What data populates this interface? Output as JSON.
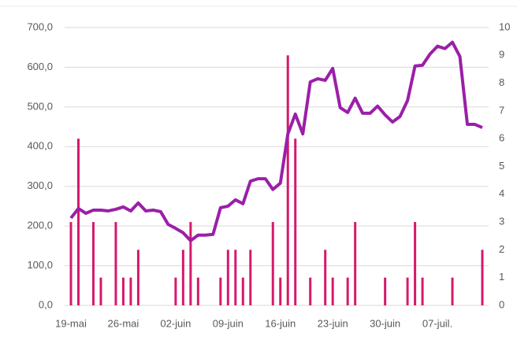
{
  "chart_data": {
    "type": "bar-line",
    "categories": [
      "19-mai",
      null,
      null,
      null,
      null,
      null,
      null,
      "26-mai",
      null,
      null,
      null,
      null,
      null,
      null,
      "02-juin",
      null,
      null,
      null,
      null,
      null,
      null,
      "09-juin",
      null,
      null,
      null,
      null,
      null,
      null,
      "16-juin",
      null,
      null,
      null,
      null,
      null,
      null,
      "23-juin",
      null,
      null,
      null,
      null,
      null,
      null,
      "30-juin",
      null,
      null,
      null,
      null,
      null,
      null,
      "07-juil.",
      null,
      null,
      null,
      null,
      null,
      null
    ],
    "series": [
      {
        "type": "bar",
        "axis": "y2",
        "color": "#d6196b",
        "values": [
          3,
          6,
          0,
          3,
          1,
          0,
          3,
          1,
          1,
          2,
          0,
          0,
          0,
          0,
          1,
          2,
          3,
          1,
          0,
          0,
          1,
          2,
          2,
          1,
          2,
          0,
          0,
          3,
          1,
          9,
          6,
          0,
          1,
          0,
          2,
          1,
          0,
          1,
          3,
          0,
          0,
          0,
          1,
          0,
          0,
          1,
          3,
          1,
          0,
          0,
          0,
          1,
          0,
          0,
          0,
          2
        ]
      },
      {
        "type": "line",
        "axis": "y",
        "color": "#9b1fa8",
        "values": [
          220,
          244,
          232,
          240,
          240,
          238,
          242,
          248,
          238,
          258,
          238,
          240,
          236,
          204,
          194,
          183,
          163,
          177,
          177,
          179,
          246,
          250,
          266,
          256,
          313,
          319,
          319,
          292,
          308,
          432,
          482,
          432,
          563,
          571,
          567,
          597,
          498,
          486,
          522,
          484,
          484,
          502,
          480,
          462,
          476,
          516,
          603,
          605,
          633,
          653,
          647,
          663,
          627,
          456,
          456,
          448
        ]
      }
    ],
    "ylim": [
      0,
      700
    ],
    "yticks": [
      {
        "value": 0,
        "label": "0,0"
      },
      {
        "value": 100,
        "label": "100,0"
      },
      {
        "value": 200,
        "label": "200,0"
      },
      {
        "value": 300,
        "label": "300,0"
      },
      {
        "value": 400,
        "label": "400,0"
      },
      {
        "value": 500,
        "label": "500,0"
      },
      {
        "value": 600,
        "label": "600,0"
      },
      {
        "value": 700,
        "label": "700,0"
      }
    ],
    "y2lim": [
      0,
      10
    ],
    "y2ticks": [
      0,
      1,
      2,
      3,
      4,
      5,
      6,
      7,
      8,
      9,
      10
    ],
    "grid": true
  }
}
